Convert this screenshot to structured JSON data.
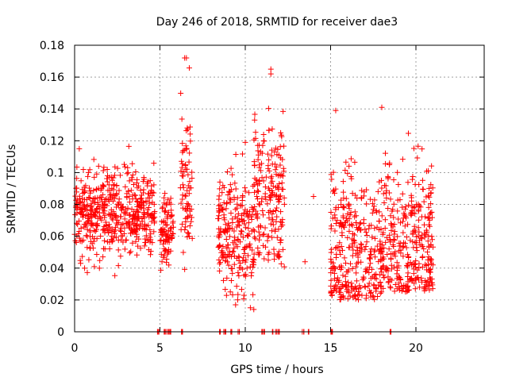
{
  "chart_data": {
    "type": "scatter",
    "title": "Day 246 of 2018, SRMTID for receiver dae3",
    "xlabel": "GPS time / hours",
    "ylabel": "SRMTID / TECUs",
    "xlim": [
      0,
      24
    ],
    "ylim": [
      0,
      0.18
    ],
    "xticks": [
      0,
      5,
      10,
      15,
      20
    ],
    "xtick_labels": [
      "0",
      "5",
      "10",
      "15",
      "20"
    ],
    "yticks": [
      0,
      0.02,
      0.04,
      0.06,
      0.08,
      0.1,
      0.12,
      0.14,
      0.16,
      0.18
    ],
    "ytick_labels": [
      "0",
      "0.02",
      "0.04",
      "0.06",
      "0.08",
      "0.1",
      "0.12",
      "0.14",
      "0.16",
      "0.18"
    ],
    "grid": true,
    "marker": "+",
    "color": "#ff0000",
    "series": [
      {
        "name": "SRMTID",
        "clusters": [
          {
            "x_start": 0.0,
            "x_end": 4.7,
            "y_min": 0.03,
            "y_max": 0.12,
            "y_center": 0.075
          },
          {
            "x_start": 5.0,
            "x_end": 5.8,
            "y_min": 0.035,
            "y_max": 0.1,
            "y_center": 0.065
          },
          {
            "x_start": 6.2,
            "x_end": 6.9,
            "y_min": 0.033,
            "y_max": 0.172,
            "y_center": 0.085
          },
          {
            "x_start": 8.4,
            "x_end": 10.5,
            "y_min": 0.015,
            "y_max": 0.12,
            "y_center": 0.06
          },
          {
            "x_start": 10.5,
            "x_end": 12.3,
            "y_min": 0.04,
            "y_max": 0.165,
            "y_center": 0.085
          },
          {
            "x_start": 15.0,
            "x_end": 18.1,
            "y_min": 0.02,
            "y_max": 0.138,
            "y_center": 0.05
          },
          {
            "x_start": 18.1,
            "x_end": 21.0,
            "y_min": 0.025,
            "y_max": 0.14,
            "y_center": 0.055
          }
        ],
        "isolated_points": [
          {
            "x": 13.5,
            "y": 0.044
          },
          {
            "x": 14.0,
            "y": 0.085
          },
          {
            "x": 6.45,
            "y": 0.172
          },
          {
            "x": 6.55,
            "y": 0.172
          },
          {
            "x": 11.5,
            "y": 0.165
          },
          {
            "x": 11.5,
            "y": 0.162
          },
          {
            "x": 18.0,
            "y": 0.141
          },
          {
            "x": 15.3,
            "y": 0.139
          },
          {
            "x": 10.0,
            "y": 0.119
          },
          {
            "x": 10.5,
            "y": 0.014
          }
        ],
        "zero_points_x": [
          4.9,
          5.3,
          5.5,
          5.6,
          6.3,
          8.5,
          8.8,
          9.2,
          9.6,
          11.0,
          11.1,
          11.6,
          11.8,
          12.0,
          13.4,
          13.7,
          15.0,
          15.1,
          18.5
        ]
      }
    ]
  }
}
